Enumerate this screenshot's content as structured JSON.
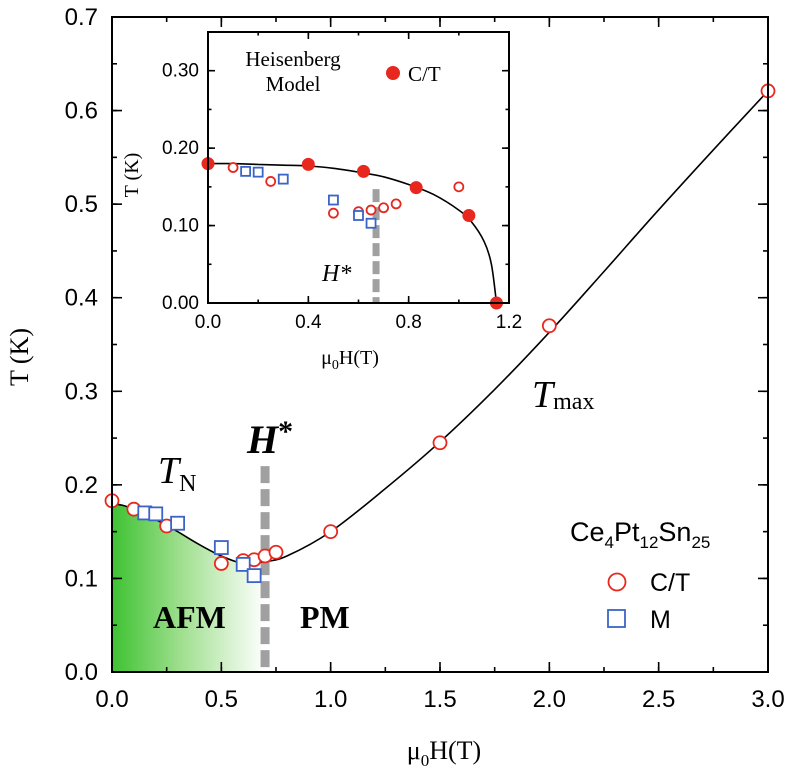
{
  "chart_data": [
    {
      "type": "scatter",
      "xlabel_main": "μ",
      "xlabel_sub": "0",
      "xlabel_tail": "H(T)",
      "ylabel": "T (K)",
      "xlim": [
        0,
        3.0
      ],
      "ylim": [
        0,
        0.7
      ],
      "xticks": [
        0,
        0.5,
        1.0,
        1.5,
        2.0,
        2.5,
        3.0
      ],
      "xtick_labels": [
        "0.0",
        "0.5",
        "1.0",
        "1.5",
        "2.0",
        "2.5",
        "3.0"
      ],
      "yticks": [
        0,
        0.1,
        0.2,
        0.3,
        0.4,
        0.5,
        0.6,
        0.7
      ],
      "ytick_labels": [
        "0.0",
        "0.1",
        "0.2",
        "0.3",
        "0.4",
        "0.5",
        "0.6",
        "0.7"
      ],
      "series": [
        {
          "name": "C/T",
          "marker": "open-circle",
          "color": "#e8281e",
          "x": [
            0.0,
            0.1,
            0.25,
            0.5,
            0.6,
            0.65,
            0.7,
            0.75,
            1.0,
            1.5,
            2.0,
            3.0
          ],
          "y": [
            0.183,
            0.174,
            0.156,
            0.116,
            0.119,
            0.12,
            0.124,
            0.128,
            0.15,
            0.245,
            0.37,
            0.621
          ]
        },
        {
          "name": "M",
          "marker": "open-square",
          "color": "#3a64c8",
          "x": [
            0.15,
            0.2,
            0.3,
            0.5,
            0.6,
            0.65
          ],
          "y": [
            0.17,
            0.169,
            0.159,
            0.133,
            0.115,
            0.103
          ]
        }
      ],
      "curve": {
        "x": [
          0.0,
          0.05,
          0.1,
          0.2,
          0.3,
          0.4,
          0.5,
          0.6,
          0.7,
          0.8,
          1.0,
          1.25,
          1.5,
          1.75,
          2.0,
          2.25,
          2.5,
          2.75,
          3.0
        ],
        "y": [
          0.18,
          0.178,
          0.174,
          0.163,
          0.15,
          0.136,
          0.124,
          0.116,
          0.118,
          0.124,
          0.15,
          0.196,
          0.246,
          0.302,
          0.363,
          0.428,
          0.494,
          0.558,
          0.621
        ]
      },
      "hstar_x": 0.7,
      "afm_boundary": {
        "x": [
          0.0,
          0.1,
          0.2,
          0.3,
          0.4,
          0.5,
          0.6,
          0.7
        ],
        "y": [
          0.18,
          0.174,
          0.163,
          0.15,
          0.136,
          0.124,
          0.116,
          0.118
        ]
      },
      "colors": {
        "afm_green": "#3ec232",
        "hstar_line": "#a0a0a0"
      },
      "annotations": {
        "tmax_italic": "T",
        "tmax_sub": "max",
        "tn_italic": "T",
        "tn_sub": "N",
        "hstar_main": "H",
        "hstar_star": "*",
        "afm": "AFM",
        "pm": "PM"
      },
      "compound": {
        "parts": [
          "Ce",
          "4",
          "Pt",
          "12",
          "Sn",
          "25"
        ]
      },
      "legend": [
        {
          "label": "C/T",
          "marker": "open-circle"
        },
        {
          "label": "M",
          "marker": "open-square"
        }
      ]
    },
    {
      "type": "scatter",
      "name": "inset",
      "xlabel_main": "μ",
      "xlabel_sub": "0",
      "xlabel_tail": "H(T)",
      "ylabel": "T (K)",
      "xlim": [
        0,
        1.2
      ],
      "ylim": [
        0,
        0.35
      ],
      "xticks": [
        0,
        0.4,
        0.8,
        1.2
      ],
      "xtick_labels": [
        "0.0",
        "0.4",
        "0.8",
        "1.2"
      ],
      "yticks": [
        0,
        0.1,
        0.2,
        0.3
      ],
      "ytick_labels": [
        "0.00",
        "0.10",
        "0.20",
        "0.30"
      ],
      "series": [
        {
          "name": "Heisenberg C/T",
          "marker": "filled-circle",
          "color": "#e8281e",
          "x": [
            0.0,
            0.4,
            0.62,
            0.83,
            1.04,
            1.15
          ],
          "y": [
            0.18,
            0.179,
            0.17,
            0.149,
            0.113,
            0.0
          ]
        },
        {
          "name": "C/T",
          "marker": "open-circle",
          "color": "#e8281e",
          "x": [
            0.1,
            0.25,
            0.5,
            0.6,
            0.65,
            0.7,
            0.75,
            1.0
          ],
          "y": [
            0.175,
            0.157,
            0.116,
            0.118,
            0.12,
            0.123,
            0.128,
            0.15
          ]
        },
        {
          "name": "M",
          "marker": "open-square",
          "color": "#3a64c8",
          "x": [
            0.15,
            0.2,
            0.3,
            0.5,
            0.6,
            0.65
          ],
          "y": [
            0.17,
            0.169,
            0.16,
            0.133,
            0.113,
            0.103
          ]
        }
      ],
      "curve": {
        "x": [
          0.0,
          0.1,
          0.2,
          0.3,
          0.4,
          0.5,
          0.6,
          0.7,
          0.8,
          0.9,
          1.0,
          1.05,
          1.1,
          1.13,
          1.15
        ],
        "y": [
          0.18,
          0.18,
          0.179,
          0.178,
          0.177,
          0.174,
          0.169,
          0.163,
          0.153,
          0.14,
          0.12,
          0.105,
          0.08,
          0.05,
          0.0
        ]
      },
      "hstar_x": 0.67,
      "hstar_label": "H*",
      "legend": [
        {
          "label": "C/T",
          "marker": "filled-circle"
        }
      ],
      "title_lines": [
        "Heisenberg",
        "Model"
      ]
    }
  ]
}
